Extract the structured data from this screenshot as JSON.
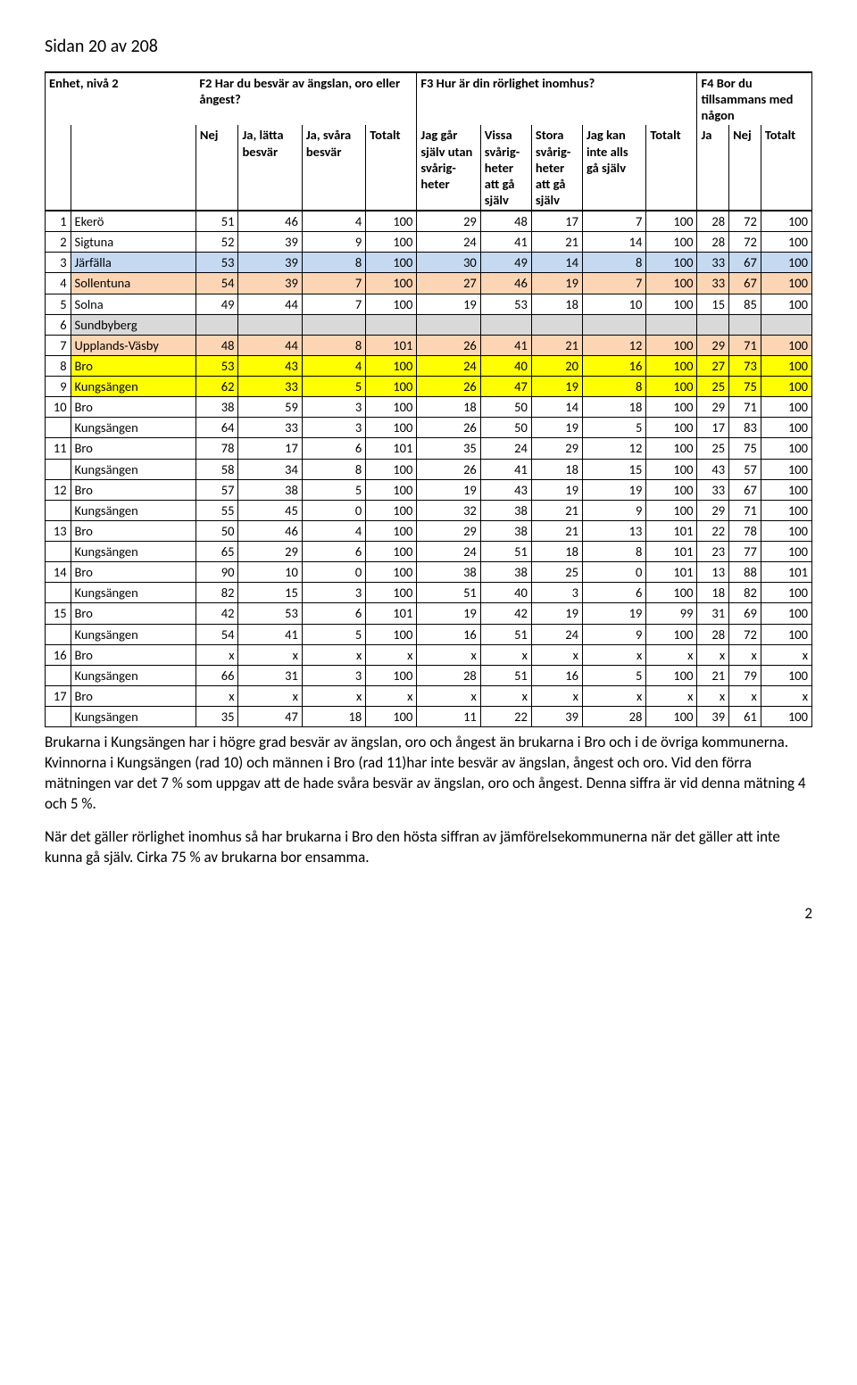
{
  "page_header": "Sidan 20 av 208",
  "page_number": "2",
  "questions": {
    "unit_label": "Enhet, nivå 2",
    "q2": "F2 Har du besvär av ängslan, oro eller ångest?",
    "q3": "F3 Hur är din rörlighet inomhus?",
    "q4": "F4 Bor du tillsammans med någon"
  },
  "subheaders": {
    "nej": "Nej",
    "latta": "Ja, lätta besvär",
    "svara": "Ja, svåra besvär",
    "totalt": "Totalt",
    "gar_sjalv": "Jag går själv utan svårig-heter",
    "vissa": "Vissa svårig-heter att gå själv",
    "stora": "Stora svårig-heter att gå själv",
    "inte_alls": "Jag kan inte alls gå själv",
    "totalt2": "Totalt",
    "ja": "Ja",
    "nej2": "Nej",
    "totalt3": "Totalt"
  },
  "row_colors": {
    "none": "#ffffff",
    "blue": "#c5d9f1",
    "peach": "#fcd5b4",
    "yellow": "#ffff00",
    "grey": "#d9d9d9"
  },
  "rows": [
    {
      "idx": "1",
      "name": "Ekerö",
      "color": "none",
      "cells": [
        "51",
        "46",
        "4",
        "100",
        "29",
        "48",
        "17",
        "7",
        "100",
        "28",
        "72",
        "100"
      ]
    },
    {
      "idx": "2",
      "name": "Sigtuna",
      "color": "none",
      "cells": [
        "52",
        "39",
        "9",
        "100",
        "24",
        "41",
        "21",
        "14",
        "100",
        "28",
        "72",
        "100"
      ]
    },
    {
      "idx": "3",
      "name": "Järfälla",
      "color": "blue",
      "cells": [
        "53",
        "39",
        "8",
        "100",
        "30",
        "49",
        "14",
        "8",
        "100",
        "33",
        "67",
        "100"
      ]
    },
    {
      "idx": "4",
      "name": "Sollentuna",
      "color": "peach",
      "cells": [
        "54",
        "39",
        "7",
        "100",
        "27",
        "46",
        "19",
        "7",
        "100",
        "33",
        "67",
        "100"
      ]
    },
    {
      "idx": "5",
      "name": "Solna",
      "color": "none",
      "cells": [
        "49",
        "44",
        "7",
        "100",
        "19",
        "53",
        "18",
        "10",
        "100",
        "15",
        "85",
        "100"
      ]
    },
    {
      "idx": "6",
      "name": "Sundbyberg",
      "color": "grey",
      "cells": [
        "",
        "",
        "",
        "",
        "",
        "",
        "",
        "",
        "",
        "",
        "",
        ""
      ]
    },
    {
      "idx": "7",
      "name": "Upplands-Väsby",
      "color": "peach",
      "cells": [
        "48",
        "44",
        "8",
        "101",
        "26",
        "41",
        "21",
        "12",
        "100",
        "29",
        "71",
        "100"
      ]
    },
    {
      "idx": "8",
      "name": "Bro",
      "color": "yellow",
      "cells": [
        "53",
        "43",
        "4",
        "100",
        "24",
        "40",
        "20",
        "16",
        "100",
        "27",
        "73",
        "100"
      ]
    },
    {
      "idx": "9",
      "name": "Kungsängen",
      "color": "yellow",
      "cells": [
        "62",
        "33",
        "5",
        "100",
        "26",
        "47",
        "19",
        "8",
        "100",
        "25",
        "75",
        "100"
      ]
    },
    {
      "idx": "10",
      "name": "Bro",
      "color": "none",
      "cells": [
        "38",
        "59",
        "3",
        "100",
        "18",
        "50",
        "14",
        "18",
        "100",
        "29",
        "71",
        "100"
      ]
    },
    {
      "idx": "",
      "name": "Kungsängen",
      "color": "none",
      "cells": [
        "64",
        "33",
        "3",
        "100",
        "26",
        "50",
        "19",
        "5",
        "100",
        "17",
        "83",
        "100"
      ]
    },
    {
      "idx": "11",
      "name": "Bro",
      "color": "none",
      "cells": [
        "78",
        "17",
        "6",
        "101",
        "35",
        "24",
        "29",
        "12",
        "100",
        "25",
        "75",
        "100"
      ]
    },
    {
      "idx": "",
      "name": "Kungsängen",
      "color": "none",
      "cells": [
        "58",
        "34",
        "8",
        "100",
        "26",
        "41",
        "18",
        "15",
        "100",
        "43",
        "57",
        "100"
      ]
    },
    {
      "idx": "12",
      "name": "Bro",
      "color": "none",
      "cells": [
        "57",
        "38",
        "5",
        "100",
        "19",
        "43",
        "19",
        "19",
        "100",
        "33",
        "67",
        "100"
      ]
    },
    {
      "idx": "",
      "name": "Kungsängen",
      "color": "none",
      "cells": [
        "55",
        "45",
        "0",
        "100",
        "32",
        "38",
        "21",
        "9",
        "100",
        "29",
        "71",
        "100"
      ]
    },
    {
      "idx": "13",
      "name": "Bro",
      "color": "none",
      "cells": [
        "50",
        "46",
        "4",
        "100",
        "29",
        "38",
        "21",
        "13",
        "101",
        "22",
        "78",
        "100"
      ]
    },
    {
      "idx": "",
      "name": "Kungsängen",
      "color": "none",
      "cells": [
        "65",
        "29",
        "6",
        "100",
        "24",
        "51",
        "18",
        "8",
        "101",
        "23",
        "77",
        "100"
      ]
    },
    {
      "idx": "14",
      "name": "Bro",
      "color": "none",
      "cells": [
        "90",
        "10",
        "0",
        "100",
        "38",
        "38",
        "25",
        "0",
        "101",
        "13",
        "88",
        "101"
      ]
    },
    {
      "idx": "",
      "name": "Kungsängen",
      "color": "none",
      "cells": [
        "82",
        "15",
        "3",
        "100",
        "51",
        "40",
        "3",
        "6",
        "100",
        "18",
        "82",
        "100"
      ]
    },
    {
      "idx": "15",
      "name": "Bro",
      "color": "none",
      "cells": [
        "42",
        "53",
        "6",
        "101",
        "19",
        "42",
        "19",
        "19",
        "99",
        "31",
        "69",
        "100"
      ]
    },
    {
      "idx": "",
      "name": "Kungsängen",
      "color": "none",
      "cells": [
        "54",
        "41",
        "5",
        "100",
        "16",
        "51",
        "24",
        "9",
        "100",
        "28",
        "72",
        "100"
      ]
    },
    {
      "idx": "16",
      "name": "Bro",
      "color": "none",
      "cells": [
        "x",
        "x",
        "x",
        "x",
        "x",
        "x",
        "x",
        "x",
        "x",
        "x",
        "x",
        "x"
      ]
    },
    {
      "idx": "",
      "name": "Kungsängen",
      "color": "none",
      "cells": [
        "66",
        "31",
        "3",
        "100",
        "28",
        "51",
        "16",
        "5",
        "100",
        "21",
        "79",
        "100"
      ]
    },
    {
      "idx": "17",
      "name": "Bro",
      "color": "none",
      "cells": [
        "x",
        "x",
        "x",
        "x",
        "x",
        "x",
        "x",
        "x",
        "x",
        "x",
        "x",
        "x"
      ]
    },
    {
      "idx": "",
      "name": "Kungsängen",
      "color": "none",
      "cells": [
        "35",
        "47",
        "18",
        "100",
        "11",
        "22",
        "39",
        "28",
        "100",
        "39",
        "61",
        "100"
      ]
    }
  ],
  "body": {
    "p1": "Brukarna i Kungsängen har i högre grad besvär av ängslan, oro och ångest än brukarna i Bro och i de övriga kommunerna. Kvinnorna i Kungsängen (rad 10) och männen i Bro (rad 11)har inte besvär av ängslan, ångest och oro. Vid den förra mätningen var det 7 % som uppgav att de hade svåra besvär av ängslan, oro och ångest. Denna siffra är vid denna mätning 4 och 5 %.",
    "p2": "När det gäller rörlighet inomhus så har brukarna i Bro den hösta siffran av jämförelsekommunerna när det gäller att inte kunna gå själv.  Cirka 75 % av brukarna bor ensamma."
  }
}
